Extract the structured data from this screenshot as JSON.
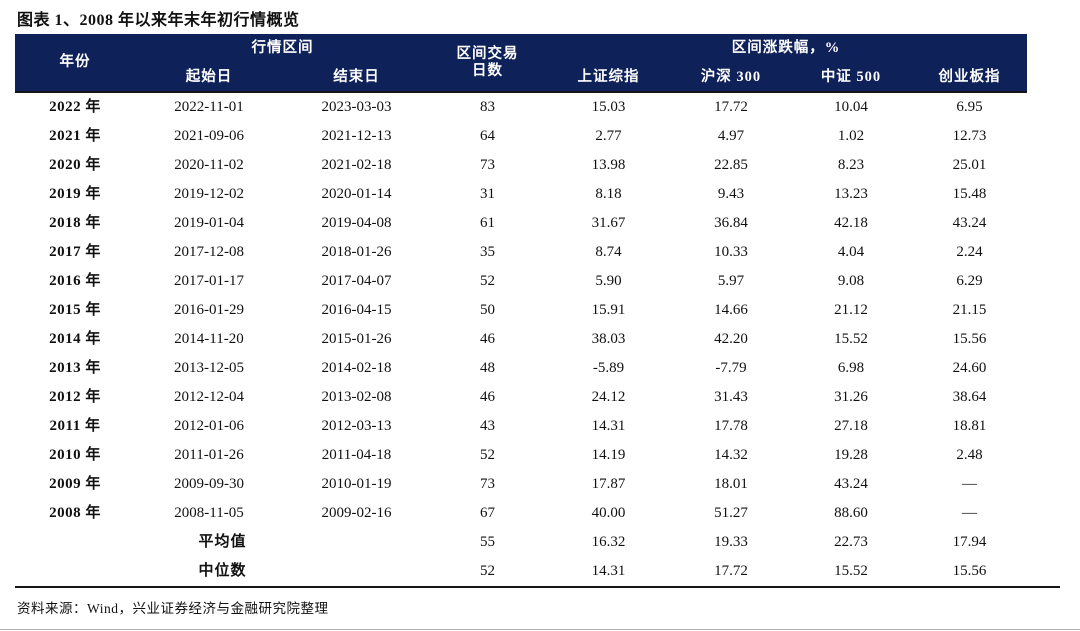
{
  "page": {
    "title": "图表 1、2008 年以来年末年初行情概览",
    "source": "资料来源：Wind，兴业证券经济与金融研究院整理"
  },
  "colors": {
    "header_bg": "#0E2158",
    "header_text": "#FFFFFF",
    "body_text": "#111111"
  },
  "table": {
    "header": {
      "year": "年份",
      "range_group": "行情区间",
      "range_start": "起始日",
      "range_end": "结束日",
      "trading_days_line1": "区间交易",
      "trading_days_line2": "日数",
      "change_group": "区间涨跌幅，%",
      "sse": "上证综指",
      "hs300": "沪深 300",
      "zz500": "中证 500",
      "chinext": "创业板指"
    },
    "rows": [
      {
        "year": "2022 年",
        "start": "2022-11-01",
        "end": "2023-03-03",
        "days": "83",
        "sse": "15.03",
        "hs300": "17.72",
        "zz500": "10.04",
        "chinext": "6.95"
      },
      {
        "year": "2021 年",
        "start": "2021-09-06",
        "end": "2021-12-13",
        "days": "64",
        "sse": "2.77",
        "hs300": "4.97",
        "zz500": "1.02",
        "chinext": "12.73"
      },
      {
        "year": "2020 年",
        "start": "2020-11-02",
        "end": "2021-02-18",
        "days": "73",
        "sse": "13.98",
        "hs300": "22.85",
        "zz500": "8.23",
        "chinext": "25.01"
      },
      {
        "year": "2019 年",
        "start": "2019-12-02",
        "end": "2020-01-14",
        "days": "31",
        "sse": "8.18",
        "hs300": "9.43",
        "zz500": "13.23",
        "chinext": "15.48"
      },
      {
        "year": "2018 年",
        "start": "2019-01-04",
        "end": "2019-04-08",
        "days": "61",
        "sse": "31.67",
        "hs300": "36.84",
        "zz500": "42.18",
        "chinext": "43.24"
      },
      {
        "year": "2017 年",
        "start": "2017-12-08",
        "end": "2018-01-26",
        "days": "35",
        "sse": "8.74",
        "hs300": "10.33",
        "zz500": "4.04",
        "chinext": "2.24"
      },
      {
        "year": "2016 年",
        "start": "2017-01-17",
        "end": "2017-04-07",
        "days": "52",
        "sse": "5.90",
        "hs300": "5.97",
        "zz500": "9.08",
        "chinext": "6.29"
      },
      {
        "year": "2015 年",
        "start": "2016-01-29",
        "end": "2016-04-15",
        "days": "50",
        "sse": "15.91",
        "hs300": "14.66",
        "zz500": "21.12",
        "chinext": "21.15"
      },
      {
        "year": "2014 年",
        "start": "2014-11-20",
        "end": "2015-01-26",
        "days": "46",
        "sse": "38.03",
        "hs300": "42.20",
        "zz500": "15.52",
        "chinext": "15.56"
      },
      {
        "year": "2013 年",
        "start": "2013-12-05",
        "end": "2014-02-18",
        "days": "48",
        "sse": "-5.89",
        "hs300": "-7.79",
        "zz500": "6.98",
        "chinext": "24.60"
      },
      {
        "year": "2012 年",
        "start": "2012-12-04",
        "end": "2013-02-08",
        "days": "46",
        "sse": "24.12",
        "hs300": "31.43",
        "zz500": "31.26",
        "chinext": "38.64"
      },
      {
        "year": "2011 年",
        "start": "2012-01-06",
        "end": "2012-03-13",
        "days": "43",
        "sse": "14.31",
        "hs300": "17.78",
        "zz500": "27.18",
        "chinext": "18.81"
      },
      {
        "year": "2010 年",
        "start": "2011-01-26",
        "end": "2011-04-18",
        "days": "52",
        "sse": "14.19",
        "hs300": "14.32",
        "zz500": "19.28",
        "chinext": "2.48"
      },
      {
        "year": "2009 年",
        "start": "2009-09-30",
        "end": "2010-01-19",
        "days": "73",
        "sse": "17.87",
        "hs300": "18.01",
        "zz500": "43.24",
        "chinext": "—"
      },
      {
        "year": "2008 年",
        "start": "2008-11-05",
        "end": "2009-02-16",
        "days": "67",
        "sse": "40.00",
        "hs300": "51.27",
        "zz500": "88.60",
        "chinext": "—"
      }
    ],
    "summary_rows": [
      {
        "label": "平均值",
        "days": "55",
        "sse": "16.32",
        "hs300": "19.33",
        "zz500": "22.73",
        "chinext": "17.94"
      },
      {
        "label": "中位数",
        "days": "52",
        "sse": "14.31",
        "hs300": "17.72",
        "zz500": "15.52",
        "chinext": "15.56"
      }
    ]
  }
}
